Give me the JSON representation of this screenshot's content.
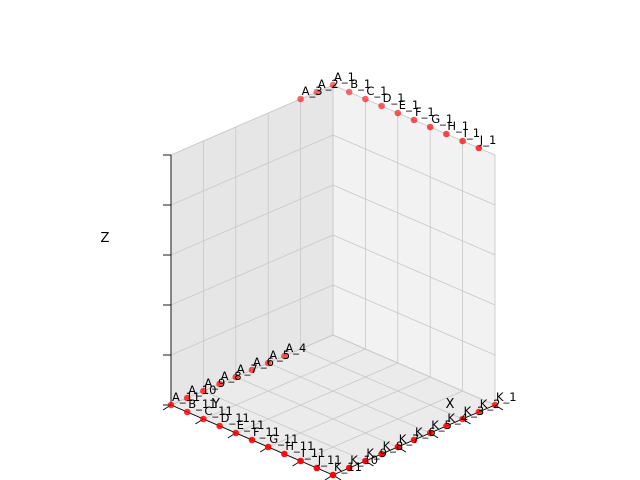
{
  "chart_data": {
    "type": "scatter3d",
    "title": "",
    "xlabel": "X",
    "ylabel": "Y",
    "zlabel": "Z",
    "xlim": [
      0,
      10
    ],
    "ylim": [
      0,
      10
    ],
    "zlim": [
      0,
      10
    ],
    "grid": true,
    "tick_labels_visible": false,
    "point_color": "#ff0000",
    "points": [
      {
        "label": "A_1",
        "x": 0,
        "y": 0,
        "z": 10
      },
      {
        "label": "A_2",
        "x": 0,
        "y": 1,
        "z": 10
      },
      {
        "label": "A_3",
        "x": 0,
        "y": 2,
        "z": 10
      },
      {
        "label": "A_4",
        "x": 0,
        "y": 3,
        "z": 0
      },
      {
        "label": "A_5",
        "x": 0,
        "y": 4,
        "z": 0
      },
      {
        "label": "A_6",
        "x": 0,
        "y": 5,
        "z": 0
      },
      {
        "label": "A_7",
        "x": 0,
        "y": 6,
        "z": 0
      },
      {
        "label": "A_8",
        "x": 0,
        "y": 7,
        "z": 0
      },
      {
        "label": "A_9",
        "x": 0,
        "y": 8,
        "z": 0
      },
      {
        "label": "A_10",
        "x": 0,
        "y": 9,
        "z": 0
      },
      {
        "label": "A_11",
        "x": 0,
        "y": 10,
        "z": 0
      },
      {
        "label": "B_1",
        "x": 1,
        "y": 0,
        "z": 10
      },
      {
        "label": "C_1",
        "x": 2,
        "y": 0,
        "z": 10
      },
      {
        "label": "D_1",
        "x": 3,
        "y": 0,
        "z": 10
      },
      {
        "label": "E_1",
        "x": 4,
        "y": 0,
        "z": 10
      },
      {
        "label": "F_1",
        "x": 5,
        "y": 0,
        "z": 10
      },
      {
        "label": "G_1",
        "x": 6,
        "y": 0,
        "z": 10
      },
      {
        "label": "H_1",
        "x": 7,
        "y": 0,
        "z": 10
      },
      {
        "label": "I_1",
        "x": 8,
        "y": 0,
        "z": 10
      },
      {
        "label": "J_1",
        "x": 9,
        "y": 0,
        "z": 10
      },
      {
        "label": "K_1",
        "x": 10,
        "y": 0,
        "z": 0
      },
      {
        "label": "K_2",
        "x": 10,
        "y": 1,
        "z": 0
      },
      {
        "label": "K_3",
        "x": 10,
        "y": 2,
        "z": 0
      },
      {
        "label": "K_4",
        "x": 10,
        "y": 3,
        "z": 0
      },
      {
        "label": "K_5",
        "x": 10,
        "y": 4,
        "z": 0
      },
      {
        "label": "K_6",
        "x": 10,
        "y": 5,
        "z": 0
      },
      {
        "label": "K_7",
        "x": 10,
        "y": 6,
        "z": 0
      },
      {
        "label": "K_8",
        "x": 10,
        "y": 7,
        "z": 0
      },
      {
        "label": "K_9",
        "x": 10,
        "y": 8,
        "z": 0
      },
      {
        "label": "K_10",
        "x": 10,
        "y": 9,
        "z": 0
      },
      {
        "label": "K_11",
        "x": 10,
        "y": 10,
        "z": 0
      },
      {
        "label": "B_11",
        "x": 1,
        "y": 10,
        "z": 0
      },
      {
        "label": "C_11",
        "x": 2,
        "y": 10,
        "z": 0
      },
      {
        "label": "D_11",
        "x": 3,
        "y": 10,
        "z": 0
      },
      {
        "label": "E_11",
        "x": 4,
        "y": 10,
        "z": 0
      },
      {
        "label": "F_11",
        "x": 5,
        "y": 10,
        "z": 0
      },
      {
        "label": "G_11",
        "x": 6,
        "y": 10,
        "z": 0
      },
      {
        "label": "H_11",
        "x": 7,
        "y": 10,
        "z": 0
      },
      {
        "label": "I_11",
        "x": 8,
        "y": 10,
        "z": 0
      },
      {
        "label": "J_11",
        "x": 9,
        "y": 10,
        "z": 0
      }
    ]
  }
}
